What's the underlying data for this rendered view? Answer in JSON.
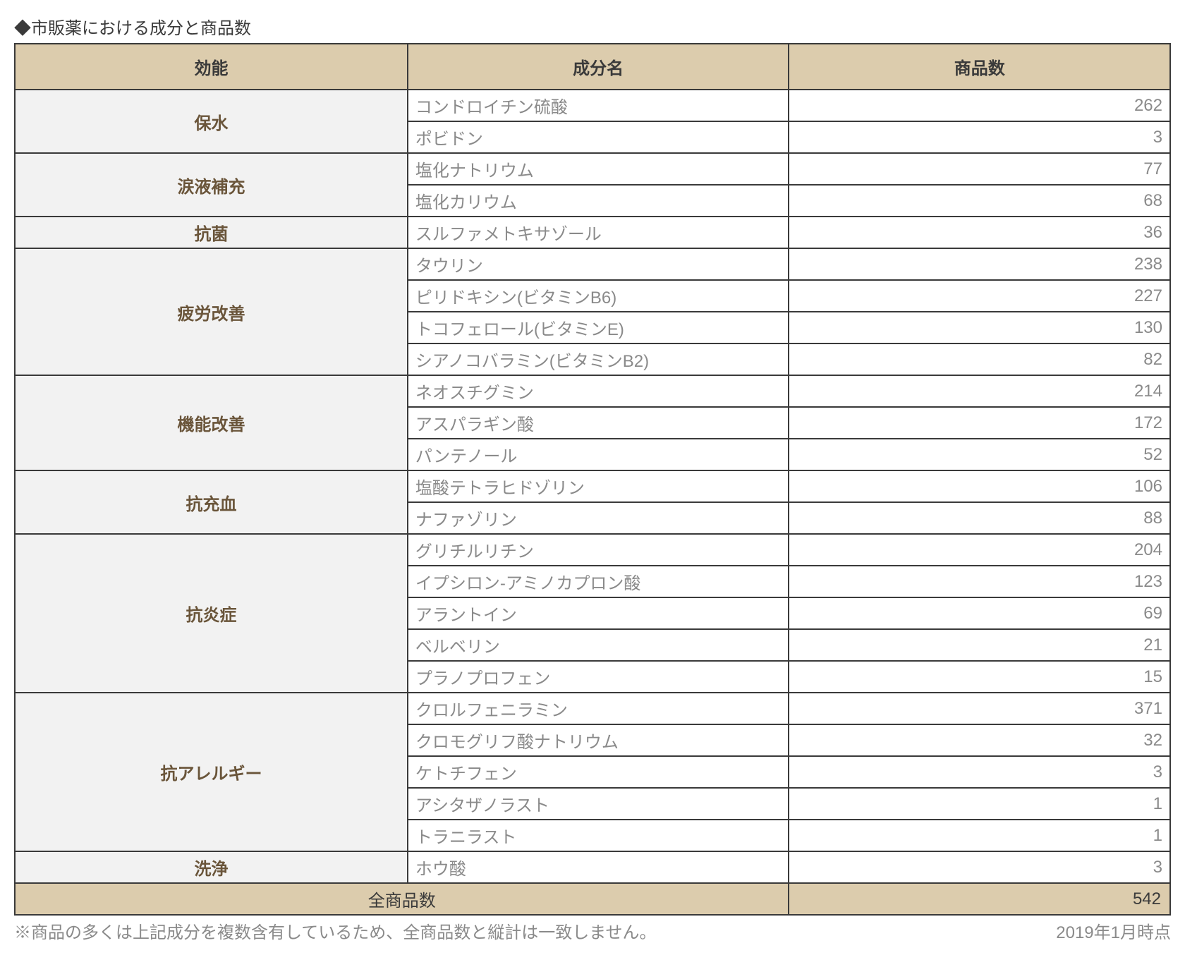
{
  "title": "◆市販薬における成分と商品数",
  "columns": {
    "c1": "効能",
    "c2": "成分名",
    "c3": "商品数"
  },
  "col_widths": [
    "34%",
    "33%",
    "33%"
  ],
  "colors": {
    "header_bg": "#dcccad",
    "cat_bg": "#f2f2f2",
    "cat_text": "#6a553a",
    "cell_text": "#8a8a8a",
    "border": "#3a3a3a",
    "title_text": "#3a3a3a"
  },
  "categories": [
    {
      "name": "保水",
      "rows": [
        {
          "ingredient": "コンドロイチン硫酸",
          "count": 262
        },
        {
          "ingredient": "ポビドン",
          "count": 3
        }
      ]
    },
    {
      "name": "涙液補充",
      "rows": [
        {
          "ingredient": "塩化ナトリウム",
          "count": 77
        },
        {
          "ingredient": "塩化カリウム",
          "count": 68
        }
      ]
    },
    {
      "name": "抗菌",
      "rows": [
        {
          "ingredient": "スルファメトキサゾール",
          "count": 36
        }
      ]
    },
    {
      "name": "疲労改善",
      "rows": [
        {
          "ingredient": "タウリン",
          "count": 238
        },
        {
          "ingredient": "ピリドキシン(ビタミンB6)",
          "count": 227
        },
        {
          "ingredient": "トコフェロール(ビタミンE)",
          "count": 130
        },
        {
          "ingredient": "シアノコバラミン(ビタミンB2)",
          "count": 82
        }
      ]
    },
    {
      "name": "機能改善",
      "rows": [
        {
          "ingredient": "ネオスチグミン",
          "count": 214
        },
        {
          "ingredient": "アスパラギン酸",
          "count": 172
        },
        {
          "ingredient": "パンテノール",
          "count": 52
        }
      ]
    },
    {
      "name": "抗充血",
      "rows": [
        {
          "ingredient": "塩酸テトラヒドゾリン",
          "count": 106
        },
        {
          "ingredient": "ナファゾリン",
          "count": 88
        }
      ]
    },
    {
      "name": "抗炎症",
      "rows": [
        {
          "ingredient": "グリチルリチン",
          "count": 204
        },
        {
          "ingredient": "イプシロン-アミノカプロン酸",
          "count": 123
        },
        {
          "ingredient": "アラントイン",
          "count": 69
        },
        {
          "ingredient": "ベルベリン",
          "count": 21
        },
        {
          "ingredient": "プラノプロフェン",
          "count": 15
        }
      ]
    },
    {
      "name": "抗アレルギー",
      "rows": [
        {
          "ingredient": "クロルフェニラミン",
          "count": 371
        },
        {
          "ingredient": "クロモグリフ酸ナトリウム",
          "count": 32
        },
        {
          "ingredient": "ケトチフェン",
          "count": 3
        },
        {
          "ingredient": "アシタザノラスト",
          "count": 1
        },
        {
          "ingredient": "トラニラスト",
          "count": 1
        }
      ]
    },
    {
      "name": "洗浄",
      "rows": [
        {
          "ingredient": "ホウ酸",
          "count": 3
        }
      ]
    }
  ],
  "total": {
    "label": "全商品数",
    "value": 542
  },
  "footnote": "※商品の多くは上記成分を複数含有しているため、全商品数と縦計は一致しません。",
  "asof": "2019年1月時点"
}
